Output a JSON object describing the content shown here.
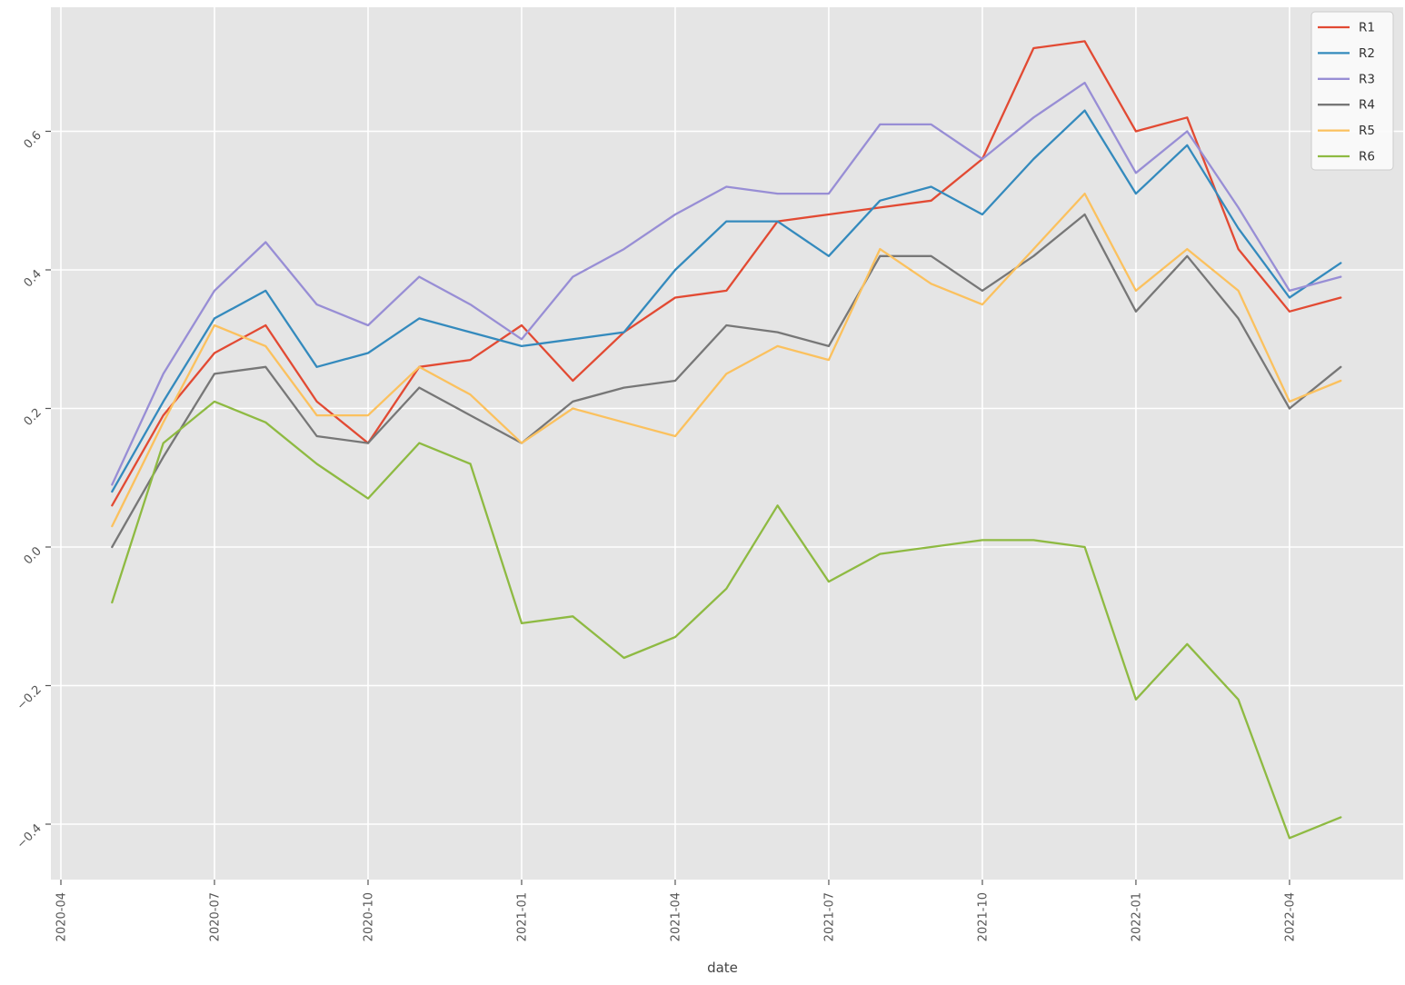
{
  "chart_data": {
    "type": "line",
    "title": "",
    "xlabel": "date",
    "ylabel": "",
    "grid": true,
    "legend_position": "upper right",
    "x": [
      "2020-05",
      "2020-06",
      "2020-07",
      "2020-08",
      "2020-09",
      "2020-10",
      "2020-11",
      "2020-12",
      "2021-01",
      "2021-02",
      "2021-03",
      "2021-04",
      "2021-05",
      "2021-06",
      "2021-07",
      "2021-08",
      "2021-09",
      "2021-10",
      "2021-11",
      "2021-12",
      "2022-01",
      "2022-02",
      "2022-03",
      "2022-04",
      "2022-05"
    ],
    "series": [
      {
        "name": "R1",
        "color": "#E24A33",
        "values": [
          0.06,
          0.19,
          0.28,
          0.32,
          0.21,
          0.15,
          0.26,
          0.27,
          0.32,
          0.24,
          0.31,
          0.36,
          0.37,
          0.47,
          0.48,
          0.49,
          0.5,
          0.56,
          0.72,
          0.73,
          0.6,
          0.62,
          0.43,
          0.34,
          0.36
        ]
      },
      {
        "name": "R2",
        "color": "#348ABD",
        "values": [
          0.08,
          0.21,
          0.33,
          0.37,
          0.26,
          0.28,
          0.33,
          0.31,
          0.29,
          0.3,
          0.31,
          0.4,
          0.47,
          0.47,
          0.42,
          0.5,
          0.52,
          0.48,
          0.56,
          0.63,
          0.51,
          0.58,
          0.46,
          0.36,
          0.41
        ]
      },
      {
        "name": "R3",
        "color": "#988ED5",
        "values": [
          0.09,
          0.25,
          0.37,
          0.44,
          0.35,
          0.32,
          0.39,
          0.35,
          0.3,
          0.39,
          0.43,
          0.48,
          0.52,
          0.51,
          0.51,
          0.61,
          0.61,
          0.56,
          0.62,
          0.67,
          0.54,
          0.6,
          0.49,
          0.37,
          0.39
        ]
      },
      {
        "name": "R4",
        "color": "#777777",
        "values": [
          0.0,
          0.13,
          0.25,
          0.26,
          0.16,
          0.15,
          0.23,
          0.19,
          0.15,
          0.21,
          0.23,
          0.24,
          0.32,
          0.31,
          0.29,
          0.42,
          0.42,
          0.37,
          0.42,
          0.48,
          0.34,
          0.42,
          0.33,
          0.2,
          0.26
        ]
      },
      {
        "name": "R5",
        "color": "#FBC15E",
        "values": [
          0.03,
          0.18,
          0.32,
          0.29,
          0.19,
          0.19,
          0.26,
          0.22,
          0.15,
          0.2,
          0.18,
          0.16,
          0.25,
          0.29,
          0.27,
          0.43,
          0.38,
          0.35,
          0.43,
          0.51,
          0.37,
          0.43,
          0.37,
          0.21,
          0.24
        ]
      },
      {
        "name": "R6",
        "color": "#8EBA42",
        "values": [
          -0.08,
          0.15,
          0.21,
          0.18,
          0.12,
          0.07,
          0.15,
          0.12,
          -0.11,
          -0.1,
          -0.16,
          -0.13,
          -0.06,
          0.06,
          -0.05,
          -0.01,
          0.0,
          0.01,
          0.01,
          0.0,
          -0.22,
          -0.14,
          -0.22,
          -0.42,
          -0.39
        ]
      }
    ],
    "x_tick_labels": [
      "2020-04",
      "2020-07",
      "2020-10",
      "2021-01",
      "2021-04",
      "2021-07",
      "2021-10",
      "2022-01",
      "2022-04"
    ],
    "y_ticks": [
      0.6,
      0.4,
      0.2,
      0.0,
      -0.2,
      -0.4
    ],
    "y_tick_labels": [
      "0.6",
      "0.4",
      "0.2",
      "0.0",
      "−0.2",
      "−0.4"
    ],
    "ylim": [
      -0.48,
      0.78
    ],
    "style": {
      "plot_bg": "#e5e5e5",
      "grid_color": "#ffffff",
      "tick_color": "#555555",
      "tick_label_color": "#555555",
      "axis_label_color": "#444444",
      "legend_bg": "#fbfbfb",
      "legend_border": "#cccccc",
      "legend_text": "#333333"
    }
  }
}
